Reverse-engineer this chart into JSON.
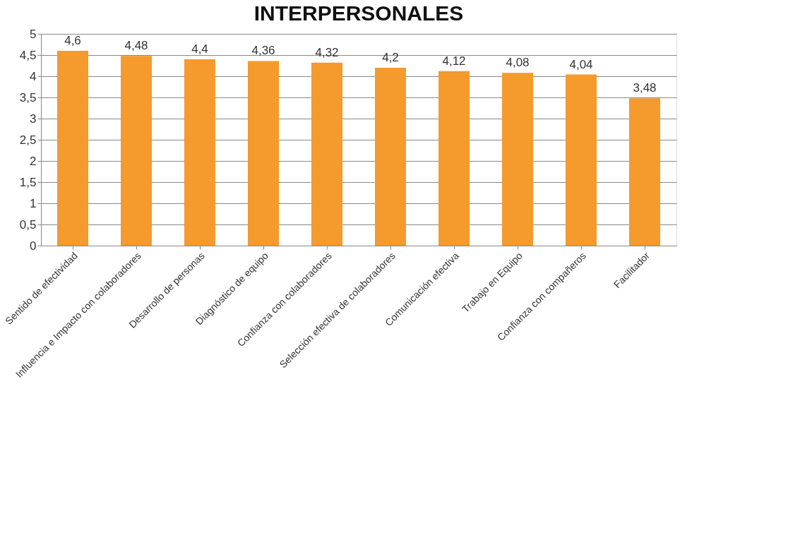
{
  "chart_data": {
    "type": "bar",
    "title": "INTERPERSONALES",
    "categories": [
      "Sentido de efectividad",
      "Influencia e Impacto con colaboradores",
      "Desarrollo de personas",
      "Diagnóstico de equipo",
      "Confianza con colaboradores",
      "Selección efectiva de colaboradores",
      "Comunicación efectiva",
      "Trabajo en Equipo",
      "Confianza con compañeros",
      "Facilitador"
    ],
    "values": [
      4.6,
      4.48,
      4.4,
      4.36,
      4.32,
      4.2,
      4.12,
      4.08,
      4.04,
      3.48
    ],
    "value_labels": [
      "4,6",
      "4,48",
      "4,4",
      "4,36",
      "4,32",
      "4,2",
      "4,12",
      "4,08",
      "4,04",
      "3,48"
    ],
    "color": "#f59a2c",
    "ylim": [
      0,
      5
    ],
    "yticks": [
      0,
      {
        "value": 0.5,
        "label": "0,5"
      },
      1,
      {
        "value": 1.5,
        "label": "1,5"
      },
      2,
      {
        "value": 2.5,
        "label": "2,5"
      },
      3,
      {
        "value": 3.5,
        "label": "3,5"
      },
      4,
      {
        "value": 4.5,
        "label": "4,5"
      },
      5
    ],
    "grid": "y"
  }
}
